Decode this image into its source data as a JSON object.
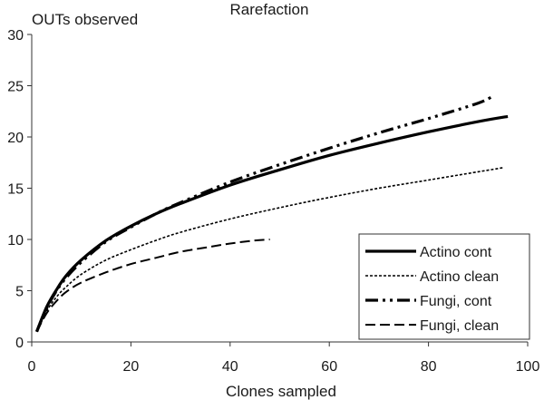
{
  "chart_data": {
    "type": "line",
    "title": "Rarefaction",
    "xlabel": "Clones sampled",
    "ylabel": "OUTs observed",
    "xlim": [
      0,
      100
    ],
    "ylim": [
      0,
      30
    ],
    "x_ticks": [
      "0",
      "20",
      "40",
      "60",
      "80",
      "100"
    ],
    "y_ticks": [
      "0",
      "5",
      "10",
      "15",
      "20",
      "25",
      "30"
    ],
    "grid": false,
    "legend_position": "bottom-right",
    "series": [
      {
        "name": "Actino cont",
        "style": "solid",
        "x": [
          1,
          3,
          5,
          7,
          10,
          15,
          20,
          25,
          30,
          40,
          50,
          60,
          70,
          80,
          90,
          96
        ],
        "y": [
          1.0,
          3.4,
          5.1,
          6.5,
          8.0,
          9.9,
          11.3,
          12.5,
          13.5,
          15.3,
          16.8,
          18.2,
          19.4,
          20.5,
          21.5,
          22.0
        ]
      },
      {
        "name": "Actino clean",
        "style": "dotted",
        "x": [
          1,
          3,
          5,
          7,
          10,
          15,
          20,
          25,
          30,
          40,
          50,
          60,
          70,
          80,
          90,
          95
        ],
        "y": [
          1.0,
          3.0,
          4.4,
          5.4,
          6.6,
          8.0,
          9.0,
          9.9,
          10.7,
          12.0,
          13.1,
          14.1,
          15.0,
          15.8,
          16.6,
          17.0
        ]
      },
      {
        "name": "Fungi, cont",
        "style": "dash-dot-dot",
        "x": [
          1,
          3,
          5,
          7,
          10,
          15,
          20,
          25,
          30,
          40,
          50,
          60,
          70,
          80,
          90,
          93
        ],
        "y": [
          1.0,
          3.3,
          5.0,
          6.3,
          7.8,
          9.8,
          11.2,
          12.5,
          13.6,
          15.6,
          17.3,
          18.9,
          20.4,
          21.8,
          23.3,
          24.0
        ]
      },
      {
        "name": "Fungi, clean",
        "style": "dashed",
        "x": [
          1,
          3,
          5,
          7,
          10,
          15,
          20,
          25,
          30,
          35,
          40,
          45,
          48
        ],
        "y": [
          1.0,
          2.8,
          4.0,
          4.9,
          5.8,
          6.8,
          7.6,
          8.2,
          8.8,
          9.2,
          9.6,
          9.9,
          10.0
        ]
      }
    ]
  }
}
